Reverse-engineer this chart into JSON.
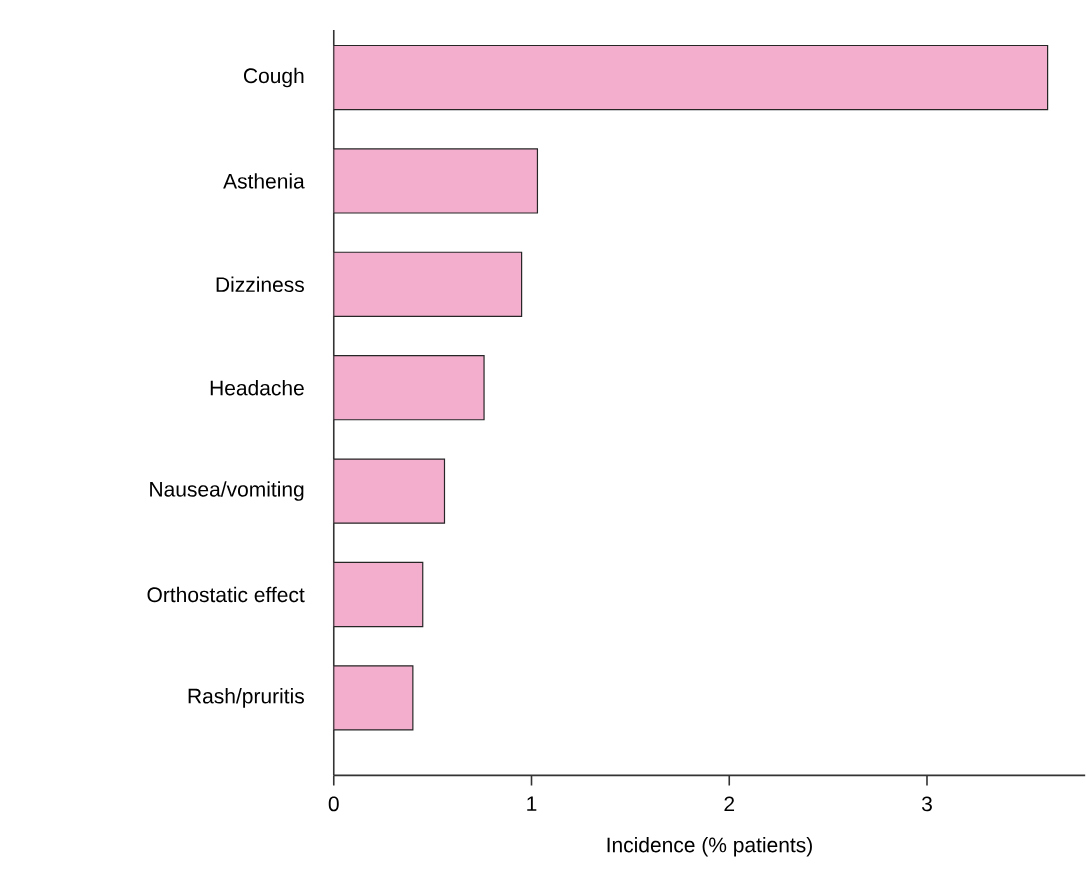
{
  "chart_data": {
    "type": "bar",
    "orientation": "horizontal",
    "categories": [
      "Cough",
      "Asthenia",
      "Dizziness",
      "Headache",
      "Nausea/vomiting",
      "Orthostatic effect",
      "Rash/pruritis"
    ],
    "values": [
      3.61,
      1.03,
      0.95,
      0.76,
      0.56,
      0.45,
      0.4
    ],
    "color": "#f3aecd",
    "xlabel": "Incidence (% patients)",
    "xlim": [
      0,
      3.8
    ],
    "xticks": [
      0,
      1,
      2,
      3
    ]
  }
}
